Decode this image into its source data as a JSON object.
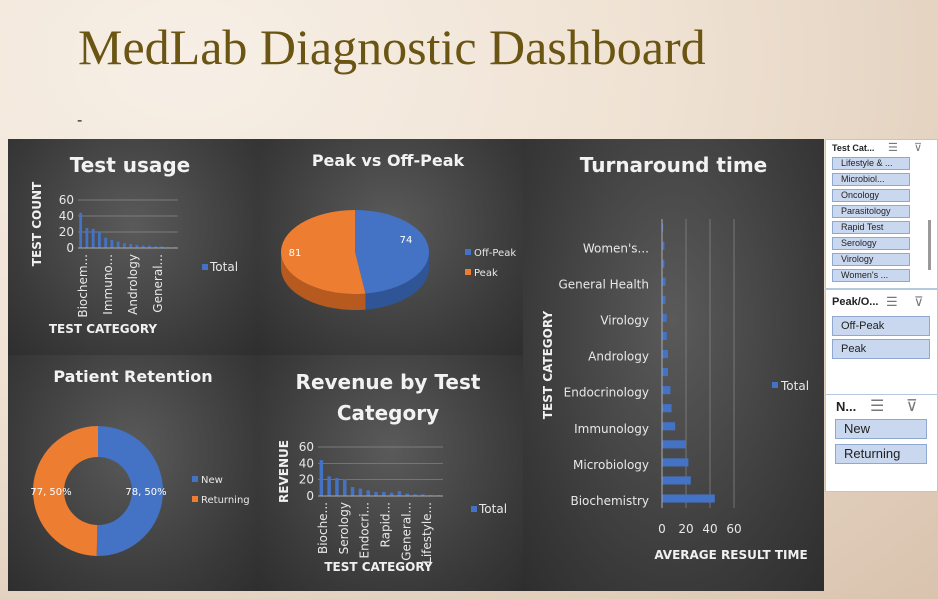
{
  "page": {
    "title": "MedLab Diagnostic Dashboard",
    "dash": "-"
  },
  "colors": {
    "blue": "#4472c4",
    "orange": "#ed7d31",
    "title": "#6b5513"
  },
  "test_usage": {
    "title": "Test usage",
    "ylabel": "TEST COUNT",
    "xlabel": "TEST CATEGORY",
    "legend": "Total"
  },
  "peak": {
    "title": "Peak vs Off-Peak"
  },
  "retention": {
    "title": "Patient Retention"
  },
  "revenue": {
    "title": "Revenue by Test Category",
    "ylabel": "REVENUE",
    "xlabel": "TEST CATEGORY",
    "legend": "Total"
  },
  "turnaround": {
    "title": "Turnaround time",
    "ylabel": "TEST CATEGORY",
    "xlabel": "AVERAGE RESULT TIME",
    "legend": "Total"
  },
  "slicers": {
    "test_category": {
      "header": "Test Cat...",
      "items": [
        "Lifestyle & ...",
        "Microbiol...",
        "Oncology",
        "Parasitology",
        "Rapid Test",
        "Serology",
        "Virology",
        "Women's ..."
      ]
    },
    "peak": {
      "header": "Peak/O...",
      "items": [
        "Off-Peak",
        "Peak"
      ]
    },
    "new": {
      "header": "N...",
      "items": [
        "New",
        "Returning"
      ]
    }
  },
  "chart_data": [
    {
      "type": "bar",
      "title": "Test usage",
      "xlabel": "TEST CATEGORY",
      "ylabel": "TEST COUNT",
      "ylim": [
        0,
        60
      ],
      "yticks": [
        0,
        20,
        40,
        60
      ],
      "tick_labels": [
        "Biochem...",
        "Immuno...",
        "Andrology",
        "General..."
      ],
      "values": [
        44,
        25,
        24,
        20,
        13,
        10,
        8,
        6,
        5,
        4,
        3,
        3,
        2,
        2,
        1,
        1
      ],
      "series": [
        {
          "name": "Total"
        }
      ],
      "legend": "right"
    },
    {
      "type": "pie",
      "title": "Peak vs Off-Peak",
      "categories": [
        "Off-Peak",
        "Peak"
      ],
      "values": [
        74,
        81
      ],
      "legend": "right"
    },
    {
      "type": "pie",
      "title": "Patient Retention",
      "categories": [
        "New",
        "Returning"
      ],
      "values": [
        78,
        77
      ],
      "labels": [
        "78, 50%",
        "77, 50%"
      ],
      "legend": "right"
    },
    {
      "type": "bar",
      "title": "Revenue by Test Category",
      "xlabel": "TEST CATEGORY",
      "ylabel": "REVENUE",
      "ylim": [
        0,
        60
      ],
      "yticks": [
        0,
        20,
        40,
        60
      ],
      "tick_labels": [
        "Bioche...",
        "Serology",
        "Endocri...",
        "Rapid...",
        "General...",
        "Lifestyle..."
      ],
      "values": [
        44,
        24,
        22,
        20,
        11,
        9,
        7,
        5,
        5,
        4,
        6,
        3,
        2,
        2,
        1,
        1
      ],
      "series": [
        {
          "name": "Total"
        }
      ],
      "legend": "right"
    },
    {
      "type": "bar",
      "orientation": "horizontal",
      "title": "Turnaround time",
      "xlabel": "AVERAGE RESULT TIME",
      "ylabel": "TEST CATEGORY",
      "xlim": [
        0,
        60
      ],
      "xticks": [
        0,
        20,
        40,
        60
      ],
      "tick_labels": [
        "Biochemistry",
        "Microbiology",
        "Immunology",
        "Endocrinology",
        "Andrology",
        "Virology",
        "General Health",
        "Women's..."
      ],
      "values": [
        44,
        24,
        22,
        20,
        11,
        8,
        7,
        5,
        5,
        4,
        4,
        3,
        3,
        2,
        2,
        1
      ],
      "series": [
        {
          "name": "Total"
        }
      ],
      "legend": "right"
    }
  ]
}
